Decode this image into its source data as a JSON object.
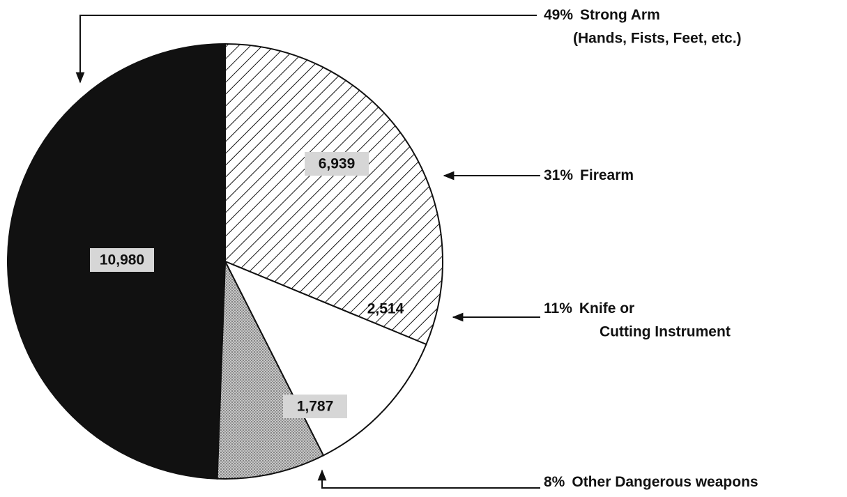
{
  "chart_data": {
    "type": "pie",
    "categories": [
      [
        "Strong Arm",
        "(Hands, Fists, Feet, etc.)"
      ],
      [
        "Firearm"
      ],
      [
        "Knife or",
        "Cutting Instrument"
      ],
      [
        "Other Dangerous weapons"
      ]
    ],
    "values": [
      10980,
      6939,
      2514,
      1787
    ],
    "value_labels": [
      "10,980",
      "6,939",
      "2,514",
      "1,787"
    ],
    "percentages": [
      49,
      31,
      11,
      8
    ],
    "percentage_labels": [
      "49%",
      "31%",
      "11%",
      "8%"
    ],
    "colors": [
      "#111111",
      "#ffffff",
      "#ffffff",
      "#b4b4b4"
    ],
    "fills": [
      "solid",
      "hatch",
      "solid",
      "dots"
    ]
  }
}
